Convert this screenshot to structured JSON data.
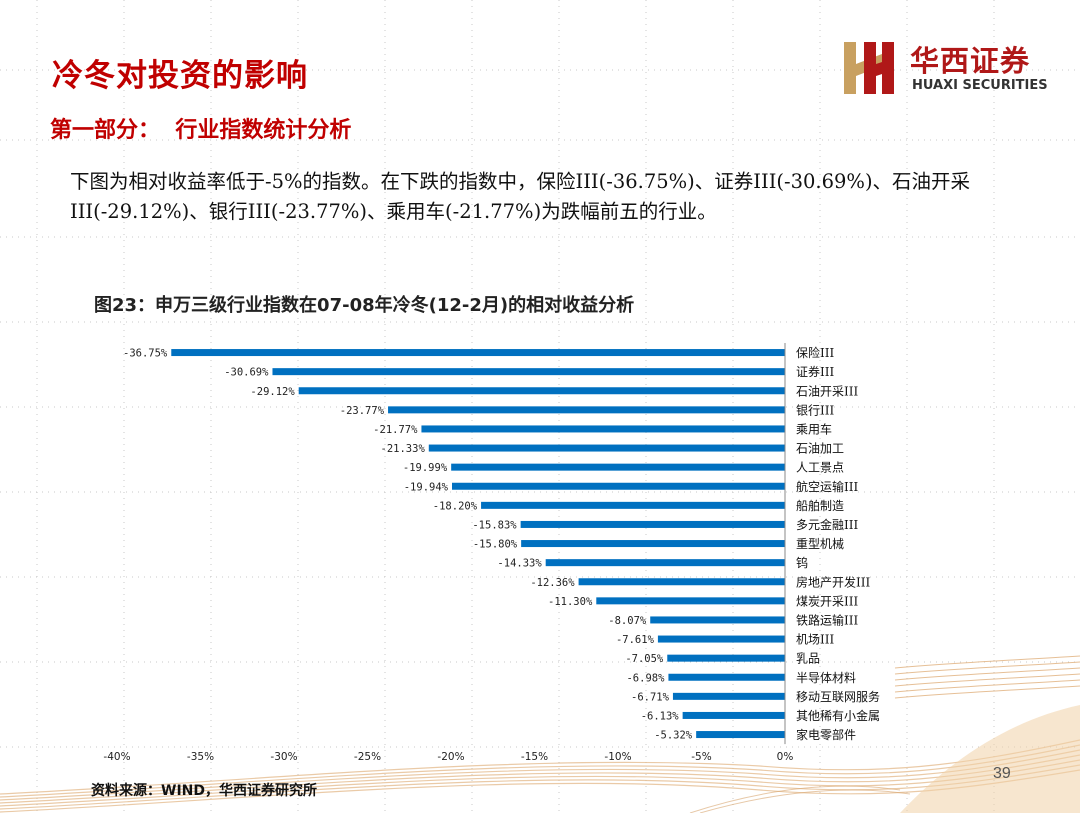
{
  "slide": {
    "title": "冷冬对投资的影响",
    "section": "第一部分：  行业指数统计分析",
    "paragraph": "下图为相对收益率低于-5%的指数。在下跌的指数中，保险III(-36.75%)、证券III(-30.69%)、石油开采III(-29.12%)、银行III(-23.77%)、乘用车(-21.77%)为跌幅前五的行业。",
    "figure_title": "图23：申万三级行业指数在07-08年冷冬(12-2月)的相对收益分析",
    "source": "资料来源：WIND，华西证券研究所",
    "page_number": "39",
    "logo": {
      "name_cn": "华西证券",
      "name_en": "HUAXI SECURITIES",
      "icon": "huaxi-logo-icon"
    },
    "colors": {
      "title_red": "#c00000",
      "bar_blue": "#0070c0",
      "logo_red": "#b01818",
      "logo_gold": "#c8a060"
    }
  },
  "chart_data": {
    "type": "bar",
    "orientation": "horizontal",
    "categories": [
      "保险III",
      "证券III",
      "石油开采III",
      "银行III",
      "乘用车",
      "石油加工",
      "人工景点",
      "航空运输III",
      "船舶制造",
      "多元金融III",
      "重型机械",
      "钨",
      "房地产开发III",
      "煤炭开采III",
      "铁路运输III",
      "机场III",
      "乳品",
      "半导体材料",
      "移动互联网服务",
      "其他稀有小金属",
      "家电零部件"
    ],
    "values": [
      -36.75,
      -30.69,
      -29.12,
      -23.77,
      -21.77,
      -21.33,
      -19.99,
      -19.94,
      -18.2,
      -15.83,
      -15.8,
      -14.33,
      -12.36,
      -11.3,
      -8.07,
      -7.61,
      -7.05,
      -6.98,
      -6.71,
      -6.13,
      -5.32
    ],
    "value_labels": [
      "-36.75%",
      "-30.69%",
      "-29.12%",
      "-23.77%",
      "-21.77%",
      "-21.33%",
      "-19.99%",
      "-19.94%",
      "-18.20%",
      "-15.83%",
      "-15.80%",
      "-14.33%",
      "-12.36%",
      "-11.30%",
      "-8.07%",
      "-7.61%",
      "-7.05%",
      "-6.98%",
      "-6.71%",
      "-6.13%",
      "-5.32%"
    ],
    "x_ticks": [
      -40,
      -35,
      -30,
      -25,
      -20,
      -15,
      -10,
      -5,
      0
    ],
    "x_tick_labels": [
      "-40%",
      "-35%",
      "-30%",
      "-25%",
      "-20%",
      "-15%",
      "-10%",
      "-5%",
      "0%"
    ],
    "xlim": [
      -40,
      0
    ],
    "color": "#0070c0",
    "grid": false,
    "legend": "none"
  }
}
